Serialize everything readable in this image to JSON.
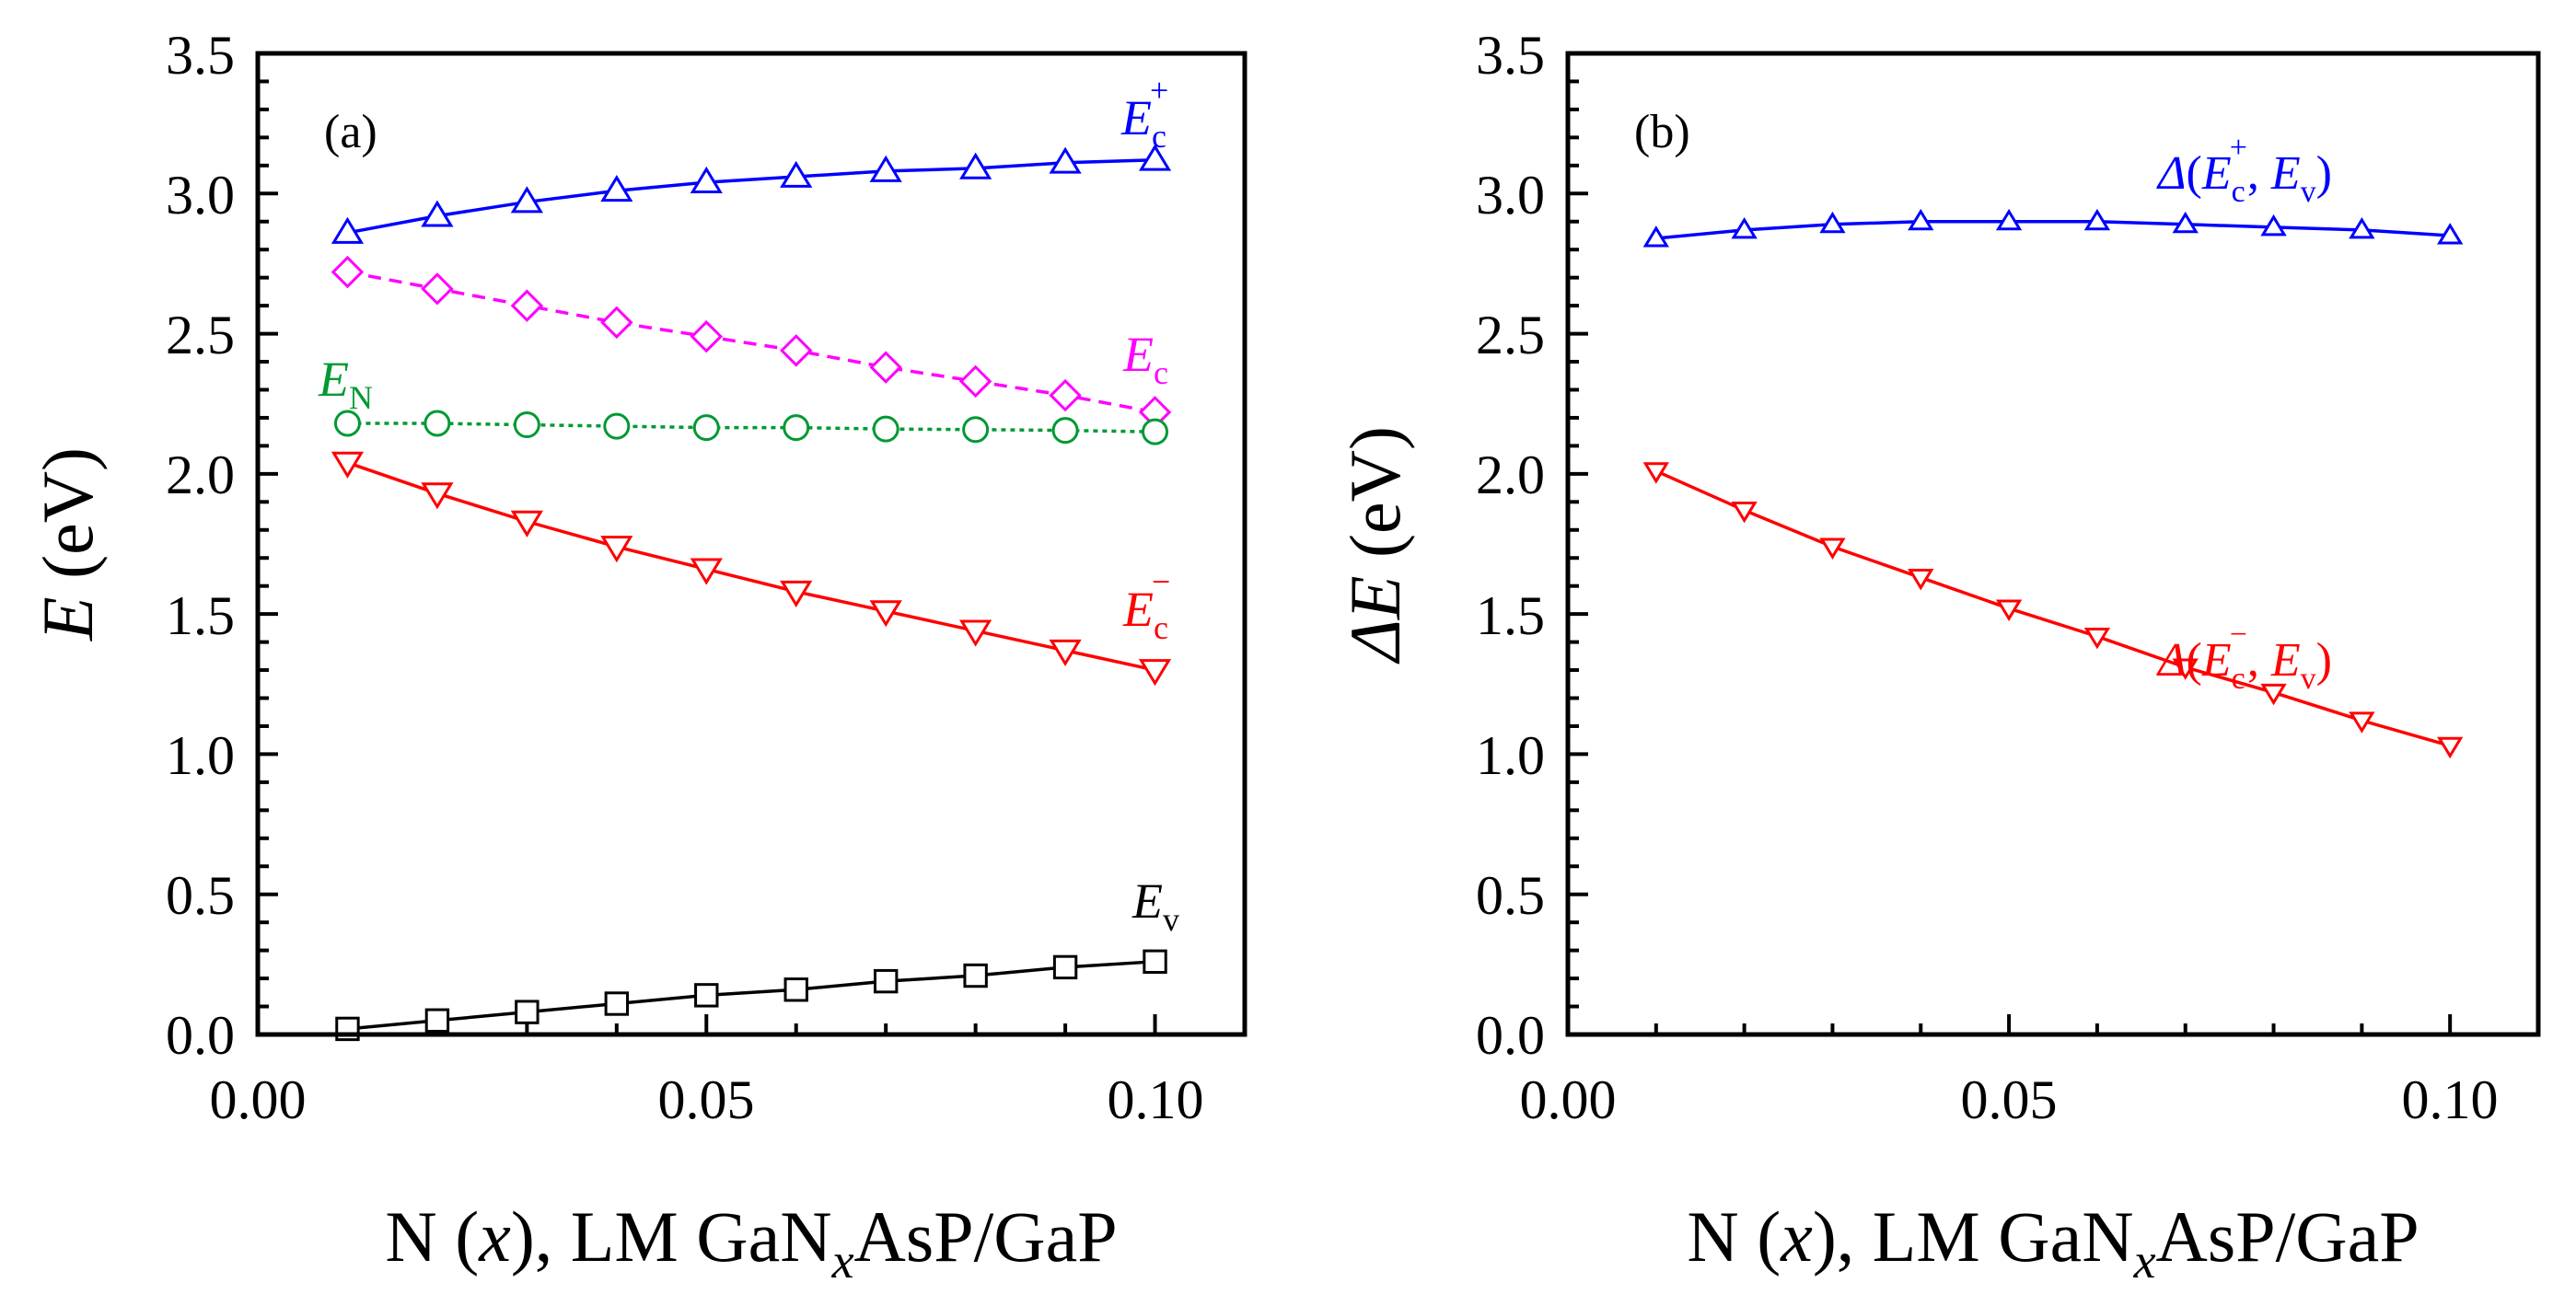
{
  "chart_data": [
    {
      "panel": "(a)",
      "type": "line",
      "xlabel": {
        "pre": "N (",
        "var": "x",
        "mid": "), LM GaN",
        "sub": "x",
        "post": "AsP/GaP"
      },
      "ylabel": {
        "var": "E",
        "unit": " (eV)"
      },
      "xlim": [
        0.0,
        0.11
      ],
      "ylim": [
        0.0,
        3.5
      ],
      "xticks": [
        "0.00",
        "0.05",
        "0.10"
      ],
      "yticks": [
        "0.0",
        "0.5",
        "1.0",
        "1.5",
        "2.0",
        "2.5",
        "3.0",
        "3.5"
      ],
      "x": [
        0.01,
        0.02,
        0.03,
        0.04,
        0.05,
        0.06,
        0.07,
        0.08,
        0.09,
        0.1
      ],
      "series": [
        {
          "name": "E_c^+",
          "label": {
            "main": "E",
            "sub": "c",
            "sup": "+"
          },
          "color": "#0000ff",
          "marker": "triangle-up",
          "dash": "solid",
          "values": [
            2.86,
            2.92,
            2.97,
            3.01,
            3.04,
            3.06,
            3.08,
            3.09,
            3.11,
            3.12
          ]
        },
        {
          "name": "E_c",
          "label": {
            "main": "E",
            "sub": "c",
            "sup": ""
          },
          "color": "#ff00ff",
          "marker": "diamond",
          "dash": "dashed",
          "values": [
            2.72,
            2.66,
            2.6,
            2.54,
            2.49,
            2.44,
            2.38,
            2.33,
            2.28,
            2.22
          ]
        },
        {
          "name": "E_N",
          "label": {
            "main": "E",
            "sub": "N",
            "sup": ""
          },
          "color": "#009933",
          "marker": "circle",
          "dash": "dotted",
          "values": [
            2.18,
            2.18,
            2.175,
            2.17,
            2.165,
            2.165,
            2.16,
            2.158,
            2.155,
            2.15
          ]
        },
        {
          "name": "E_c^-",
          "label": {
            "main": "E",
            "sub": "c",
            "sup": "−"
          },
          "color": "#ff0000",
          "marker": "triangle-down",
          "dash": "solid",
          "values": [
            2.04,
            1.93,
            1.83,
            1.74,
            1.66,
            1.58,
            1.51,
            1.44,
            1.37,
            1.3
          ]
        },
        {
          "name": "E_v",
          "label": {
            "main": "E",
            "sub": "v",
            "sup": ""
          },
          "color": "#000000",
          "marker": "square",
          "dash": "solid",
          "values": [
            0.02,
            0.05,
            0.08,
            0.11,
            0.14,
            0.16,
            0.19,
            0.21,
            0.24,
            0.26
          ]
        }
      ]
    },
    {
      "panel": "(b)",
      "type": "line",
      "xlabel": {
        "pre": "N (",
        "var": "x",
        "mid": "), LM GaN",
        "sub": "x",
        "post": "AsP/GaP"
      },
      "ylabel": {
        "var": "ΔE",
        "unit": " (eV)"
      },
      "xlim": [
        0.0,
        0.11
      ],
      "ylim": [
        0.0,
        3.5
      ],
      "xticks": [
        "0.00",
        "0.05",
        "0.10"
      ],
      "yticks": [
        "0.0",
        "0.5",
        "1.0",
        "1.5",
        "2.0",
        "2.5",
        "3.0",
        "3.5"
      ],
      "x": [
        0.01,
        0.02,
        0.03,
        0.04,
        0.05,
        0.06,
        0.07,
        0.08,
        0.09,
        0.1
      ],
      "series": [
        {
          "name": "Δ(E_c^+, E_v)",
          "label": {
            "main": "E",
            "sub": "c",
            "sup": "+"
          },
          "color": "#0000ff",
          "marker": "triangle-up",
          "dash": "solid",
          "values": [
            2.84,
            2.87,
            2.89,
            2.9,
            2.9,
            2.9,
            2.89,
            2.88,
            2.87,
            2.85
          ]
        },
        {
          "name": "Δ(E_c^-, E_v)",
          "label": {
            "main": "E",
            "sub": "c",
            "sup": "−"
          },
          "color": "#ff0000",
          "marker": "triangle-down",
          "dash": "solid",
          "values": [
            2.01,
            1.87,
            1.74,
            1.63,
            1.52,
            1.42,
            1.31,
            1.22,
            1.12,
            1.03
          ]
        }
      ]
    }
  ]
}
